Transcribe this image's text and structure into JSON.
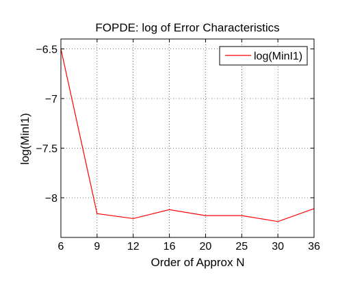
{
  "chart_data": {
    "type": "line",
    "title": "FOPDE: log of Error Characteristics",
    "xlabel": "Order of Approx N",
    "ylabel": "log(MinI1)",
    "categories": [
      "6",
      "9",
      "12",
      "16",
      "20",
      "25",
      "30",
      "36"
    ],
    "series": [
      {
        "name": "log(MinI1)",
        "color": "#ff0000",
        "values": [
          -6.5,
          -8.16,
          -8.21,
          -8.12,
          -8.18,
          -8.18,
          -8.24,
          -8.11
        ]
      }
    ],
    "ylim": [
      -8.4,
      -6.4
    ],
    "yticks": [
      -6.5,
      -7,
      -7.5,
      -8
    ],
    "ytick_labels": [
      "−6.5",
      "−7",
      "−7.5",
      "−8"
    ],
    "grid": true,
    "grid_style": "dotted",
    "legend_position": "top-right"
  }
}
